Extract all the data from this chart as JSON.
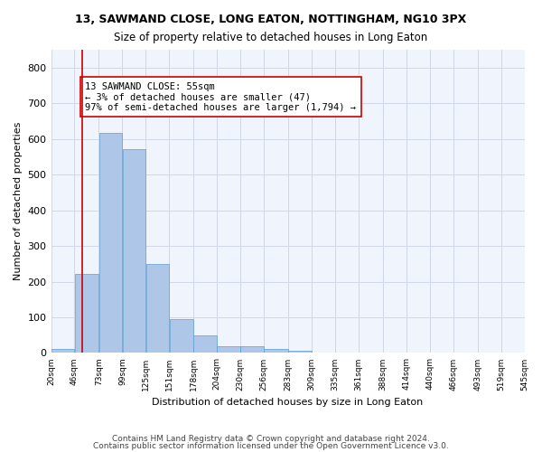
{
  "title1": "13, SAWMAND CLOSE, LONG EATON, NOTTINGHAM, NG10 3PX",
  "title2": "Size of property relative to detached houses in Long Eaton",
  "xlabel": "Distribution of detached houses by size in Long Eaton",
  "ylabel": "Number of detached properties",
  "bar_color": "#aec6e8",
  "bar_edge_color": "#5a9fd4",
  "vline_color": "#cc0000",
  "vline_x": 55,
  "annotation_text": "13 SAWMAND CLOSE: 55sqm\n← 3% of detached houses are smaller (47)\n97% of semi-detached houses are larger (1,794) →",
  "annotation_box_color": "#ffffff",
  "annotation_box_edge": "#cc0000",
  "bin_edges": [
    20,
    46,
    73,
    99,
    125,
    151,
    178,
    204,
    230,
    256,
    283,
    309,
    335,
    361,
    388,
    414,
    440,
    466,
    493,
    519,
    545
  ],
  "bar_heights": [
    10,
    222,
    617,
    570,
    250,
    95,
    48,
    20,
    20,
    10,
    5,
    2,
    1,
    0,
    0,
    0,
    0,
    0,
    0,
    0
  ],
  "ylim": [
    0,
    850
  ],
  "yticks": [
    0,
    100,
    200,
    300,
    400,
    500,
    600,
    700,
    800
  ],
  "footer1": "Contains HM Land Registry data © Crown copyright and database right 2024.",
  "footer2": "Contains public sector information licensed under the Open Government Licence v3.0.",
  "grid_color": "#d0d8e8",
  "bg_color": "#f0f4fc"
}
